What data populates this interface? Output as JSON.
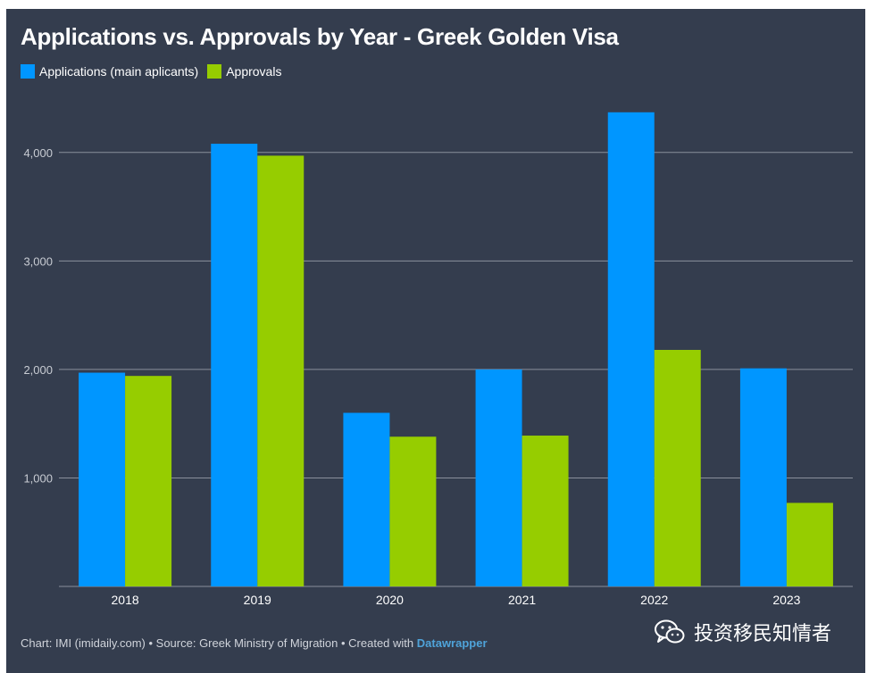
{
  "chart_data": {
    "type": "bar",
    "title": "Applications vs. Approvals by Year - Greek Golden Visa",
    "categories": [
      "2018",
      "2019",
      "2020",
      "2021",
      "2022",
      "2023"
    ],
    "series": [
      {
        "name": "Applications (main aplicants)",
        "color": "#0096ff",
        "values": [
          1970,
          4080,
          1600,
          2000,
          4370,
          2010
        ]
      },
      {
        "name": "Approvals",
        "color": "#96cd00",
        "values": [
          1940,
          3970,
          1380,
          1390,
          2180,
          770
        ]
      }
    ],
    "ylim": [
      0,
      4500
    ],
    "yticks": [
      1000,
      2000,
      3000,
      4000
    ],
    "ytick_labels": [
      "1,000",
      "2,000",
      "3,000",
      "4,000"
    ],
    "grid": true,
    "legend_position": "top-left"
  },
  "footer": {
    "text": "Chart: IMI (imidaily.com) • Source: Greek Ministry of Migration • Created with ",
    "brand": "Datawrapper"
  },
  "watermark": {
    "icon": "wechat-icon",
    "text": "投资移民知情者"
  },
  "colors": {
    "background": "#343d4e",
    "gridline": "#8a909c",
    "axis_text": "#c8ccd3"
  }
}
